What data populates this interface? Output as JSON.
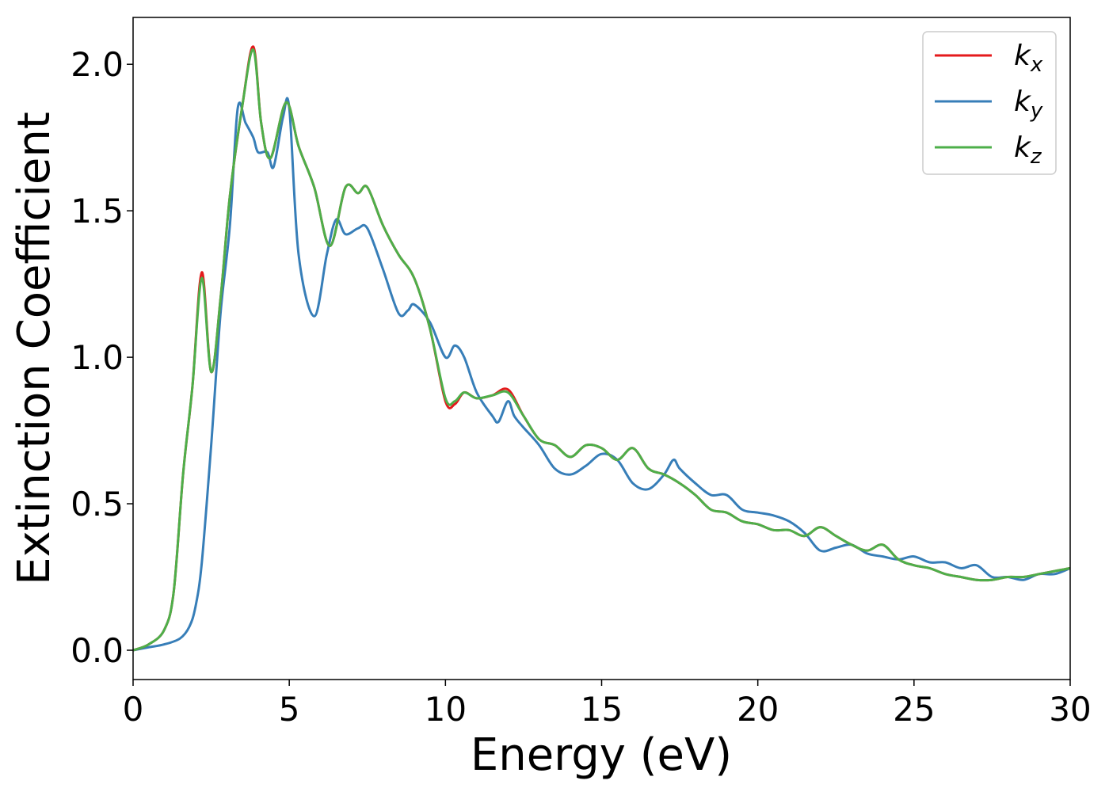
{
  "chart_data": {
    "type": "line",
    "xlabel": "Energy (eV)",
    "ylabel": "Extinction Coefficient",
    "xlim": [
      0,
      30
    ],
    "ylim": [
      -0.1,
      2.16
    ],
    "xticks": [
      0,
      5,
      10,
      15,
      20,
      25,
      30
    ],
    "xtick_labels": [
      "0",
      "5",
      "10",
      "15",
      "20",
      "25",
      "30"
    ],
    "yticks": [
      0.0,
      0.5,
      1.0,
      1.5,
      2.0
    ],
    "ytick_labels": [
      "0.0",
      "0.5",
      "1.0",
      "1.5",
      "2.0"
    ],
    "grid": false,
    "legend_position": "top-right",
    "series": [
      {
        "name": "k",
        "sub": "x",
        "color": "#e41a1c",
        "x": [
          0,
          0.5,
          1.0,
          1.3,
          1.6,
          1.9,
          2.2,
          2.5,
          2.8,
          3.1,
          3.5,
          3.85,
          4.1,
          4.4,
          4.9,
          5.3,
          5.8,
          6.3,
          6.8,
          7.2,
          7.5,
          8.0,
          8.5,
          9.0,
          9.5,
          10.0,
          10.3,
          10.6,
          11.0,
          11.5,
          12.0,
          12.5,
          13.0,
          13.5,
          14.0,
          14.5,
          15.0,
          15.5,
          16.0,
          16.5,
          17.0,
          17.5,
          18.0,
          18.5,
          19.0,
          19.5,
          20.0,
          20.5,
          21.0,
          21.5,
          22.0,
          22.5,
          23.0,
          23.5,
          24.0,
          24.5,
          25.0,
          25.5,
          26.0,
          26.5,
          27.0,
          27.5,
          28.0,
          28.5,
          29.0,
          29.5,
          30.0
        ],
        "y": [
          0.0,
          0.02,
          0.07,
          0.2,
          0.6,
          0.9,
          1.29,
          0.95,
          1.2,
          1.55,
          1.86,
          2.06,
          1.8,
          1.68,
          1.87,
          1.72,
          1.58,
          1.38,
          1.58,
          1.56,
          1.58,
          1.45,
          1.35,
          1.27,
          1.1,
          0.85,
          0.84,
          0.88,
          0.86,
          0.87,
          0.89,
          0.8,
          0.72,
          0.7,
          0.66,
          0.7,
          0.69,
          0.65,
          0.69,
          0.62,
          0.6,
          0.57,
          0.53,
          0.48,
          0.47,
          0.44,
          0.43,
          0.41,
          0.41,
          0.39,
          0.42,
          0.39,
          0.36,
          0.34,
          0.36,
          0.31,
          0.29,
          0.28,
          0.26,
          0.25,
          0.24,
          0.24,
          0.25,
          0.25,
          0.26,
          0.27,
          0.28
        ]
      },
      {
        "name": "k",
        "sub": "y",
        "color": "#377eb8",
        "x": [
          0,
          0.5,
          1.0,
          1.5,
          1.8,
          2.0,
          2.2,
          2.5,
          2.8,
          3.1,
          3.35,
          3.6,
          3.85,
          4.0,
          4.3,
          4.5,
          4.8,
          5.0,
          5.3,
          5.8,
          6.2,
          6.5,
          6.8,
          7.2,
          7.5,
          8.0,
          8.5,
          8.8,
          9.0,
          9.5,
          10.0,
          10.3,
          10.6,
          11.0,
          11.5,
          11.7,
          12.0,
          12.2,
          12.5,
          13.0,
          13.5,
          14.0,
          14.5,
          15.0,
          15.5,
          16.0,
          16.5,
          17.0,
          17.3,
          17.5,
          18.0,
          18.5,
          19.0,
          19.5,
          20.0,
          20.5,
          21.0,
          21.5,
          22.0,
          22.5,
          23.0,
          23.5,
          24.0,
          24.5,
          25.0,
          25.5,
          26.0,
          26.5,
          27.0,
          27.5,
          28.0,
          28.5,
          29.0,
          29.5,
          30.0
        ],
        "y": [
          0.0,
          0.01,
          0.02,
          0.04,
          0.08,
          0.15,
          0.3,
          0.7,
          1.15,
          1.45,
          1.85,
          1.8,
          1.75,
          1.7,
          1.7,
          1.65,
          1.82,
          1.85,
          1.35,
          1.14,
          1.35,
          1.47,
          1.42,
          1.44,
          1.44,
          1.3,
          1.15,
          1.16,
          1.18,
          1.12,
          1.0,
          1.04,
          1.0,
          0.88,
          0.8,
          0.78,
          0.85,
          0.8,
          0.76,
          0.7,
          0.62,
          0.6,
          0.63,
          0.67,
          0.65,
          0.57,
          0.55,
          0.6,
          0.65,
          0.62,
          0.57,
          0.53,
          0.53,
          0.48,
          0.47,
          0.46,
          0.44,
          0.4,
          0.34,
          0.35,
          0.36,
          0.33,
          0.32,
          0.31,
          0.32,
          0.3,
          0.3,
          0.28,
          0.29,
          0.25,
          0.25,
          0.24,
          0.26,
          0.26,
          0.28
        ]
      },
      {
        "name": "k",
        "sub": "z",
        "color": "#4daf4a",
        "x": [
          0,
          0.5,
          1.0,
          1.3,
          1.6,
          1.9,
          2.2,
          2.5,
          2.8,
          3.1,
          3.5,
          3.85,
          4.1,
          4.4,
          4.9,
          5.3,
          5.8,
          6.3,
          6.8,
          7.2,
          7.5,
          8.0,
          8.5,
          9.0,
          9.5,
          10.0,
          10.3,
          10.6,
          11.0,
          11.5,
          12.0,
          12.5,
          13.0,
          13.5,
          14.0,
          14.5,
          15.0,
          15.5,
          16.0,
          16.5,
          17.0,
          17.5,
          18.0,
          18.5,
          19.0,
          19.5,
          20.0,
          20.5,
          21.0,
          21.5,
          22.0,
          22.5,
          23.0,
          23.5,
          24.0,
          24.5,
          25.0,
          25.5,
          26.0,
          26.5,
          27.0,
          27.5,
          28.0,
          28.5,
          29.0,
          29.5,
          30.0
        ],
        "y": [
          0.0,
          0.02,
          0.07,
          0.2,
          0.6,
          0.9,
          1.27,
          0.95,
          1.2,
          1.55,
          1.86,
          2.05,
          1.8,
          1.68,
          1.87,
          1.72,
          1.58,
          1.38,
          1.58,
          1.56,
          1.58,
          1.45,
          1.35,
          1.27,
          1.1,
          0.86,
          0.85,
          0.88,
          0.86,
          0.87,
          0.88,
          0.8,
          0.72,
          0.7,
          0.66,
          0.7,
          0.69,
          0.65,
          0.69,
          0.62,
          0.6,
          0.57,
          0.53,
          0.48,
          0.47,
          0.44,
          0.43,
          0.41,
          0.41,
          0.39,
          0.42,
          0.39,
          0.36,
          0.34,
          0.36,
          0.31,
          0.29,
          0.28,
          0.26,
          0.25,
          0.24,
          0.24,
          0.25,
          0.25,
          0.26,
          0.27,
          0.28
        ]
      }
    ]
  }
}
